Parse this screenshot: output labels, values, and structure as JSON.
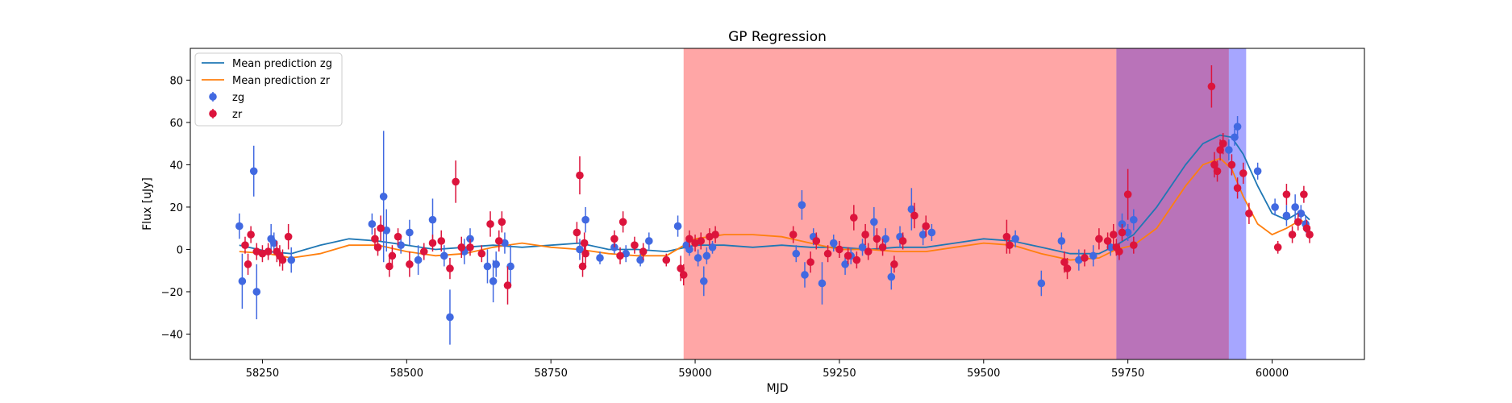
{
  "chart_data": {
    "type": "scatter",
    "title": "GP Regression",
    "xlabel": "MJD",
    "ylabel": "Flux [uJy]",
    "xlim": [
      58125,
      60160
    ],
    "ylim": [
      -52,
      95
    ],
    "xticks": [
      58250,
      58500,
      58750,
      59000,
      59250,
      59500,
      59750,
      60000
    ],
    "xtick_labels": [
      "58250",
      "58500",
      "58750",
      "59000",
      "59250",
      "59500",
      "59750",
      "60000"
    ],
    "yticks": [
      -40,
      -20,
      0,
      20,
      40,
      60,
      80
    ],
    "ytick_labels": [
      "−40",
      "−20",
      "0",
      "20",
      "40",
      "60",
      "80"
    ],
    "grid": false,
    "legend_position": "top-left",
    "legend": [
      {
        "label": "Mean prediction zg",
        "kind": "line",
        "color": "#1f77b4"
      },
      {
        "label": "Mean prediction zr",
        "kind": "line",
        "color": "#ff7f0e"
      },
      {
        "label": "zg",
        "kind": "marker",
        "color": "#4169e1"
      },
      {
        "label": "zr",
        "kind": "marker",
        "color": "#dc143c"
      }
    ],
    "shaded_regions": [
      {
        "x0": 58980,
        "x1": 59730,
        "color": "#ff0000",
        "opacity": 0.35
      },
      {
        "x0": 59730,
        "x1": 59925,
        "color": "#800080",
        "opacity": 0.55
      },
      {
        "x0": 59925,
        "x1": 59955,
        "color": "#0000ff",
        "opacity": 0.35
      }
    ],
    "series": [
      {
        "name": "Mean prediction zg",
        "kind": "line",
        "color": "#1f77b4",
        "x": [
          58210,
          58260,
          58300,
          58350,
          58400,
          58450,
          58500,
          58550,
          58600,
          58650,
          58700,
          58750,
          58800,
          58850,
          58900,
          58950,
          59000,
          59050,
          59100,
          59150,
          59200,
          59250,
          59300,
          59350,
          59400,
          59450,
          59500,
          59550,
          59600,
          59650,
          59700,
          59730,
          59760,
          59800,
          59850,
          59880,
          59910,
          59930,
          59950,
          59975,
          60000,
          60025,
          60050,
          60065
        ],
        "y": [
          2,
          -1,
          -2,
          2,
          5,
          4,
          2,
          0,
          1,
          2,
          1,
          2,
          3,
          0,
          0,
          -1,
          2,
          2,
          1,
          2,
          1,
          1,
          0,
          1,
          1,
          3,
          5,
          4,
          1,
          -2,
          -2,
          2,
          7,
          20,
          40,
          50,
          54,
          53,
          45,
          30,
          17,
          14,
          18,
          14
        ]
      },
      {
        "name": "Mean prediction zr",
        "kind": "line",
        "color": "#ff7f0e",
        "x": [
          58210,
          58260,
          58300,
          58350,
          58400,
          58450,
          58500,
          58550,
          58600,
          58650,
          58700,
          58750,
          58800,
          58850,
          58900,
          58950,
          59000,
          59050,
          59100,
          59150,
          59200,
          59250,
          59300,
          59350,
          59400,
          59450,
          59500,
          59550,
          59600,
          59650,
          59700,
          59730,
          59760,
          59800,
          59850,
          59880,
          59910,
          59930,
          59950,
          59975,
          60000,
          60025,
          60050,
          60065
        ],
        "y": [
          -1,
          -2,
          -4,
          -2,
          2,
          2,
          -1,
          -3,
          -2,
          1,
          3,
          1,
          0,
          -2,
          -3,
          -3,
          5,
          7,
          7,
          6,
          3,
          0,
          0,
          -1,
          -1,
          1,
          3,
          2,
          -2,
          -5,
          -4,
          0,
          2,
          10,
          30,
          40,
          43,
          38,
          25,
          12,
          7,
          10,
          14,
          10
        ]
      },
      {
        "name": "zg",
        "kind": "points",
        "color": "#4169e1",
        "points": [
          {
            "x": 58210,
            "y": 11,
            "err": 6
          },
          {
            "x": 58215,
            "y": -15,
            "err": 13
          },
          {
            "x": 58235,
            "y": 37,
            "err": 12
          },
          {
            "x": 58240,
            "y": -20,
            "err": 13
          },
          {
            "x": 58265,
            "y": 5,
            "err": 7
          },
          {
            "x": 58270,
            "y": 3,
            "err": 5
          },
          {
            "x": 58300,
            "y": -5,
            "err": 6
          },
          {
            "x": 58440,
            "y": 12,
            "err": 5
          },
          {
            "x": 58460,
            "y": 25,
            "err": 31
          },
          {
            "x": 58465,
            "y": 9,
            "err": 10
          },
          {
            "x": 58490,
            "y": 2,
            "err": 4
          },
          {
            "x": 58505,
            "y": 8,
            "err": 6
          },
          {
            "x": 58520,
            "y": -5,
            "err": 7
          },
          {
            "x": 58545,
            "y": 14,
            "err": 10
          },
          {
            "x": 58565,
            "y": -3,
            "err": 5
          },
          {
            "x": 58575,
            "y": -32,
            "err": 13
          },
          {
            "x": 58600,
            "y": -1,
            "err": 6
          },
          {
            "x": 58610,
            "y": 5,
            "err": 5
          },
          {
            "x": 58640,
            "y": -8,
            "err": 8
          },
          {
            "x": 58650,
            "y": -15,
            "err": 10
          },
          {
            "x": 58655,
            "y": -7,
            "err": 6
          },
          {
            "x": 58670,
            "y": 3,
            "err": 5
          },
          {
            "x": 58680,
            "y": -8,
            "err": 10
          },
          {
            "x": 58800,
            "y": 0,
            "err": 5
          },
          {
            "x": 58810,
            "y": 14,
            "err": 6
          },
          {
            "x": 58835,
            "y": -4,
            "err": 3
          },
          {
            "x": 58860,
            "y": 1,
            "err": 3
          },
          {
            "x": 58880,
            "y": -2,
            "err": 4
          },
          {
            "x": 58905,
            "y": -5,
            "err": 3
          },
          {
            "x": 58920,
            "y": 4,
            "err": 4
          },
          {
            "x": 58970,
            "y": 11,
            "err": 5
          },
          {
            "x": 58985,
            "y": 2,
            "err": 3
          },
          {
            "x": 58990,
            "y": 0,
            "err": 3
          },
          {
            "x": 59005,
            "y": -4,
            "err": 4
          },
          {
            "x": 59015,
            "y": -15,
            "err": 7
          },
          {
            "x": 59020,
            "y": -3,
            "err": 4
          },
          {
            "x": 59030,
            "y": 1,
            "err": 3
          },
          {
            "x": 59175,
            "y": -2,
            "err": 4
          },
          {
            "x": 59185,
            "y": 21,
            "err": 7
          },
          {
            "x": 59190,
            "y": -12,
            "err": 6
          },
          {
            "x": 59205,
            "y": 6,
            "err": 4
          },
          {
            "x": 59220,
            "y": -16,
            "err": 10
          },
          {
            "x": 59240,
            "y": 3,
            "err": 4
          },
          {
            "x": 59260,
            "y": -7,
            "err": 5
          },
          {
            "x": 59270,
            "y": -3,
            "err": 4
          },
          {
            "x": 59290,
            "y": 1,
            "err": 4
          },
          {
            "x": 59310,
            "y": 13,
            "err": 7
          },
          {
            "x": 59330,
            "y": 5,
            "err": 5
          },
          {
            "x": 59340,
            "y": -13,
            "err": 6
          },
          {
            "x": 59355,
            "y": 6,
            "err": 5
          },
          {
            "x": 59375,
            "y": 19,
            "err": 10
          },
          {
            "x": 59395,
            "y": 7,
            "err": 5
          },
          {
            "x": 59410,
            "y": 8,
            "err": 4
          },
          {
            "x": 59555,
            "y": 5,
            "err": 4
          },
          {
            "x": 59600,
            "y": -16,
            "err": 6
          },
          {
            "x": 59635,
            "y": 4,
            "err": 4
          },
          {
            "x": 59665,
            "y": -5,
            "err": 5
          },
          {
            "x": 59690,
            "y": -3,
            "err": 5
          },
          {
            "x": 59720,
            "y": 1,
            "err": 4
          },
          {
            "x": 59740,
            "y": 12,
            "err": 5
          },
          {
            "x": 59750,
            "y": 8,
            "err": 4
          },
          {
            "x": 59760,
            "y": 14,
            "err": 5
          },
          {
            "x": 59925,
            "y": 47,
            "err": 5
          },
          {
            "x": 59935,
            "y": 53,
            "err": 4
          },
          {
            "x": 59940,
            "y": 58,
            "err": 5
          },
          {
            "x": 59975,
            "y": 37,
            "err": 4
          },
          {
            "x": 60005,
            "y": 20,
            "err": 4
          },
          {
            "x": 60025,
            "y": 16,
            "err": 5
          },
          {
            "x": 60040,
            "y": 20,
            "err": 6
          },
          {
            "x": 60050,
            "y": 17,
            "err": 4
          },
          {
            "x": 60058,
            "y": 12,
            "err": 4
          }
        ]
      },
      {
        "name": "zr",
        "kind": "points",
        "color": "#dc143c",
        "points": [
          {
            "x": 58220,
            "y": 2,
            "err": 4
          },
          {
            "x": 58225,
            "y": -7,
            "err": 5
          },
          {
            "x": 58230,
            "y": 7,
            "err": 4
          },
          {
            "x": 58240,
            "y": -1,
            "err": 4
          },
          {
            "x": 58250,
            "y": -2,
            "err": 4
          },
          {
            "x": 58260,
            "y": -1,
            "err": 4
          },
          {
            "x": 58275,
            "y": -1,
            "err": 5
          },
          {
            "x": 58280,
            "y": -3,
            "err": 5
          },
          {
            "x": 58285,
            "y": -5,
            "err": 5
          },
          {
            "x": 58295,
            "y": 6,
            "err": 6
          },
          {
            "x": 58445,
            "y": 5,
            "err": 5
          },
          {
            "x": 58450,
            "y": 1,
            "err": 4
          },
          {
            "x": 58455,
            "y": 10,
            "err": 6
          },
          {
            "x": 58470,
            "y": -8,
            "err": 5
          },
          {
            "x": 58475,
            "y": -3,
            "err": 5
          },
          {
            "x": 58485,
            "y": 6,
            "err": 4
          },
          {
            "x": 58505,
            "y": -7,
            "err": 6
          },
          {
            "x": 58530,
            "y": -1,
            "err": 4
          },
          {
            "x": 58545,
            "y": 3,
            "err": 4
          },
          {
            "x": 58560,
            "y": 4,
            "err": 5
          },
          {
            "x": 58575,
            "y": -9,
            "err": 5
          },
          {
            "x": 58585,
            "y": 32,
            "err": 10
          },
          {
            "x": 58595,
            "y": 1,
            "err": 5
          },
          {
            "x": 58610,
            "y": 1,
            "err": 4
          },
          {
            "x": 58630,
            "y": -2,
            "err": 4
          },
          {
            "x": 58645,
            "y": 12,
            "err": 6
          },
          {
            "x": 58660,
            "y": 4,
            "err": 5
          },
          {
            "x": 58665,
            "y": 13,
            "err": 5
          },
          {
            "x": 58675,
            "y": -17,
            "err": 9
          },
          {
            "x": 58795,
            "y": 8,
            "err": 5
          },
          {
            "x": 58800,
            "y": 35,
            "err": 9
          },
          {
            "x": 58805,
            "y": -8,
            "err": 5
          },
          {
            "x": 58808,
            "y": 3,
            "err": 5
          },
          {
            "x": 58810,
            "y": -2,
            "err": 5
          },
          {
            "x": 58860,
            "y": 5,
            "err": 4
          },
          {
            "x": 58870,
            "y": -3,
            "err": 4
          },
          {
            "x": 58875,
            "y": 13,
            "err": 5
          },
          {
            "x": 58895,
            "y": 2,
            "err": 4
          },
          {
            "x": 58910,
            "y": -1,
            "err": 4
          },
          {
            "x": 58950,
            "y": -5,
            "err": 3
          },
          {
            "x": 58975,
            "y": -9,
            "err": 6
          },
          {
            "x": 58980,
            "y": -12,
            "err": 5
          },
          {
            "x": 58990,
            "y": 5,
            "err": 4
          },
          {
            "x": 59000,
            "y": 3,
            "err": 4
          },
          {
            "x": 59010,
            "y": 4,
            "err": 4
          },
          {
            "x": 59025,
            "y": 6,
            "err": 4
          },
          {
            "x": 59035,
            "y": 7,
            "err": 4
          },
          {
            "x": 59170,
            "y": 7,
            "err": 4
          },
          {
            "x": 59200,
            "y": -6,
            "err": 5
          },
          {
            "x": 59210,
            "y": 4,
            "err": 4
          },
          {
            "x": 59230,
            "y": -2,
            "err": 4
          },
          {
            "x": 59250,
            "y": 0,
            "err": 4
          },
          {
            "x": 59265,
            "y": -3,
            "err": 4
          },
          {
            "x": 59275,
            "y": 15,
            "err": 6
          },
          {
            "x": 59280,
            "y": -5,
            "err": 4
          },
          {
            "x": 59295,
            "y": 7,
            "err": 5
          },
          {
            "x": 59300,
            "y": -1,
            "err": 4
          },
          {
            "x": 59315,
            "y": 5,
            "err": 5
          },
          {
            "x": 59325,
            "y": 1,
            "err": 4
          },
          {
            "x": 59345,
            "y": -7,
            "err": 4
          },
          {
            "x": 59360,
            "y": 4,
            "err": 4
          },
          {
            "x": 59380,
            "y": 16,
            "err": 6
          },
          {
            "x": 59400,
            "y": 11,
            "err": 5
          },
          {
            "x": 59540,
            "y": 6,
            "err": 8
          },
          {
            "x": 59545,
            "y": 2,
            "err": 4
          },
          {
            "x": 59640,
            "y": -6,
            "err": 5
          },
          {
            "x": 59645,
            "y": -9,
            "err": 5
          },
          {
            "x": 59675,
            "y": -4,
            "err": 4
          },
          {
            "x": 59700,
            "y": 5,
            "err": 5
          },
          {
            "x": 59715,
            "y": 4,
            "err": 4
          },
          {
            "x": 59725,
            "y": 7,
            "err": 5
          },
          {
            "x": 59730,
            "y": 1,
            "err": 4
          },
          {
            "x": 59735,
            "y": -1,
            "err": 4
          },
          {
            "x": 59740,
            "y": 8,
            "err": 4
          },
          {
            "x": 59750,
            "y": 26,
            "err": 12
          },
          {
            "x": 59760,
            "y": 2,
            "err": 4
          },
          {
            "x": 59895,
            "y": 77,
            "err": 10
          },
          {
            "x": 59900,
            "y": 40,
            "err": 6
          },
          {
            "x": 59905,
            "y": 37,
            "err": 5
          },
          {
            "x": 59910,
            "y": 47,
            "err": 5
          },
          {
            "x": 59915,
            "y": 50,
            "err": 5
          },
          {
            "x": 59930,
            "y": 40,
            "err": 5
          },
          {
            "x": 59940,
            "y": 29,
            "err": 5
          },
          {
            "x": 59950,
            "y": 36,
            "err": 5
          },
          {
            "x": 59960,
            "y": 17,
            "err": 5
          },
          {
            "x": 60010,
            "y": 1,
            "err": 3
          },
          {
            "x": 60025,
            "y": 26,
            "err": 5
          },
          {
            "x": 60035,
            "y": 7,
            "err": 4
          },
          {
            "x": 60045,
            "y": 13,
            "err": 4
          },
          {
            "x": 60055,
            "y": 26,
            "err": 4
          },
          {
            "x": 60060,
            "y": 10,
            "err": 4
          },
          {
            "x": 60065,
            "y": 7,
            "err": 4
          }
        ]
      }
    ]
  }
}
